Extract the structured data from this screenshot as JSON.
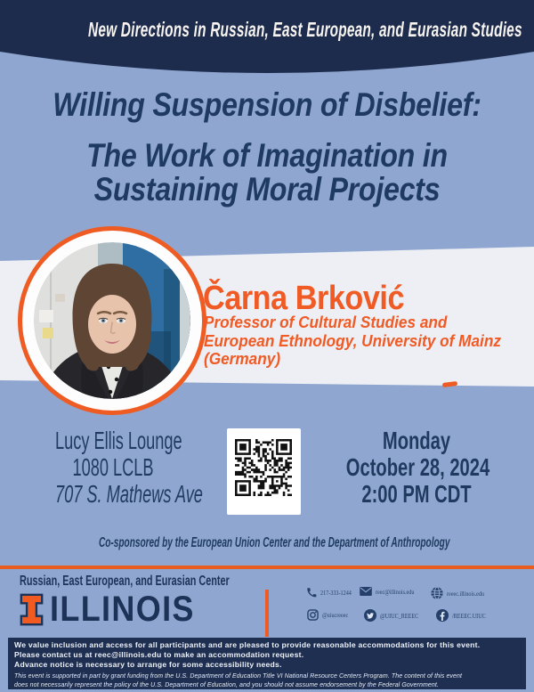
{
  "colors": {
    "navy": "#1d2b4c",
    "light_blue": "#8fa7d0",
    "orange": "#ee5c24",
    "title_navy": "#1e3a62",
    "band_white": "#edeff4"
  },
  "banner": {
    "series_title": "New Directions in Russian, East European, and Eurasian Studies"
  },
  "title": {
    "line1": "Willing Suspension of Disbelief:",
    "line2": "The Work of Imagination in",
    "line3": "Sustaining Moral Projects"
  },
  "speaker": {
    "name": "Čarna Brković",
    "affiliation_lines": [
      "Professor of Cultural Studies and",
      "European Ethnology, University of Mainz",
      "(Germany)"
    ],
    "photo": "portrait-of-speaker"
  },
  "event": {
    "venue": "Lucy Ellis Lounge",
    "room": "1080 LCLB",
    "address": "707 S. Mathews Ave",
    "day": "Monday",
    "date": "October 28, 2024",
    "time": "2:00 PM CDT",
    "qr": "qr-code"
  },
  "cosponsor": "Co-sponsored by the European Union Center and the Department of Anthropology",
  "footer": {
    "center_name": "Russian, East European, and Eurasian Center",
    "wordmark": "ILLINOIS",
    "contacts": [
      {
        "icon": "phone-icon",
        "label": "217-333-1244"
      },
      {
        "icon": "email-icon",
        "label": "reec@illinois.edu"
      },
      {
        "icon": "globe-icon",
        "label": "reeec.illinois.edu"
      },
      {
        "icon": "instagram-icon",
        "label": "@uiucreeec"
      },
      {
        "icon": "twitter-icon",
        "label": "@UIUC_REEEC"
      },
      {
        "icon": "facebook-icon",
        "label": "/REEEC.UIUC"
      }
    ]
  },
  "accessibility": {
    "line1": "We value inclusion and access for all participants and are pleased to provide reasonable accommodations for this event.",
    "line2": "Please contact us at reec@illinois.edu to make an accommodation request.",
    "line3": "Advance notice is necessary to arrange for some accessibility needs.",
    "disclaimer_line1": "This event is supported in part by grant funding from the U.S. Department of Education Title VI National Resource Centers Program. The content of this event",
    "disclaimer_line2": "does not necessarily represent the policy of the U.S. Department of Education, and you should not assume endorsement by the Federal Government."
  }
}
